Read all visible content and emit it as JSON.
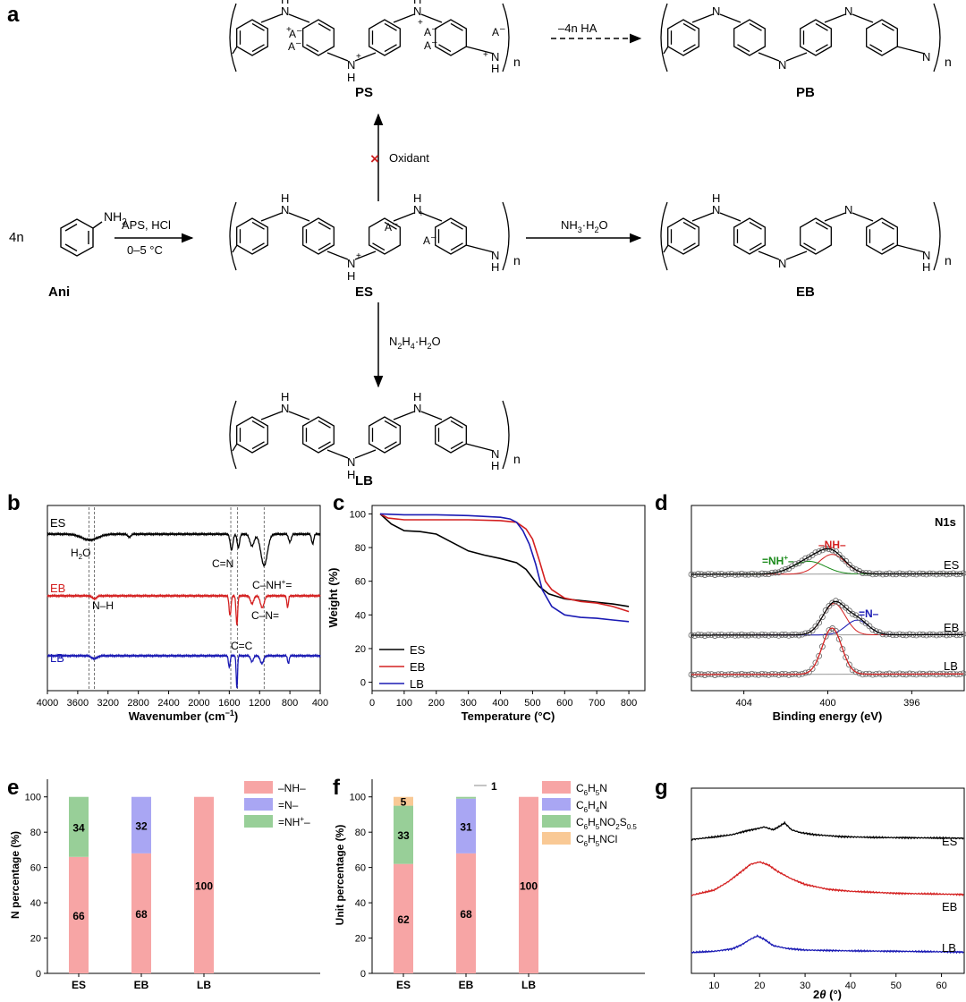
{
  "panels": {
    "a": "a",
    "b": "b",
    "c": "c",
    "d": "d",
    "e": "e",
    "f": "f",
    "g": "g"
  },
  "scheme": {
    "compounds": {
      "ani": "Ani",
      "es": "ES",
      "eb": "EB",
      "lb": "LB",
      "ps": "PS",
      "pb": "PB"
    },
    "coefficient": "4n",
    "subscript_n": "n",
    "ani_group": "NH",
    "ani_group_sub": "2",
    "reagents": {
      "aps": "APS, HCl",
      "temperature": "0–5 °C",
      "nh3": "NH",
      "nh3_sub": "3",
      "nh3_tail": "·H",
      "nh3_sub2": "2",
      "nh3_tail2": "O",
      "n2h4_1": "N",
      "n2h4_sub1": "2",
      "n2h4_2": "H",
      "n2h4_sub2": "4",
      "n2h4_3": "·H",
      "n2h4_sub3": "2",
      "n2h4_4": "O",
      "oxidant": "Oxidant",
      "blocked_mark": "×",
      "ha_loss": "–4n HA"
    },
    "atoms": {
      "n": "N",
      "h": "H",
      "nh": "NH",
      "anion": "A",
      "minus": "–",
      "plus": "+"
    }
  },
  "chart_data": [
    {
      "panel": "b",
      "type": "line",
      "xlabel": "Wavenumber (cm",
      "xlabel_sup": "−1",
      "xlabel_tail": ")",
      "xlim": [
        4000,
        400
      ],
      "xticks": [
        4000,
        3600,
        3200,
        2800,
        2400,
        2000,
        1600,
        1200,
        800,
        400
      ],
      "reference_lines": [
        3450,
        3380,
        1580,
        1490,
        1140
      ],
      "series": [
        {
          "name": "ES",
          "color": "#000000",
          "baseline": 0,
          "peaks": [
            [
              3440,
              3,
              150
            ],
            [
              2920,
              1.5,
              30
            ],
            [
              1570,
              8,
              25
            ],
            [
              1480,
              7,
              22
            ],
            [
              1300,
              6,
              40
            ],
            [
              1140,
              16,
              60
            ],
            [
              800,
              4,
              25
            ],
            [
              500,
              5,
              20
            ]
          ]
        },
        {
          "name": "EB",
          "color": "#d42020",
          "baseline": 0,
          "peaks": [
            [
              3380,
              1.5,
              40
            ],
            [
              1590,
              10,
              18
            ],
            [
              1500,
              15,
              15
            ],
            [
              1300,
              4,
              30
            ],
            [
              1165,
              6,
              35
            ],
            [
              830,
              6,
              15
            ]
          ]
        },
        {
          "name": "LB",
          "color": "#1a1ab4",
          "baseline": 0,
          "peaks": [
            [
              3380,
              1.5,
              50
            ],
            [
              1600,
              6,
              15
            ],
            [
              1500,
              17,
              12
            ],
            [
              1300,
              3,
              25
            ],
            [
              1170,
              4,
              30
            ],
            [
              820,
              4,
              15
            ]
          ]
        }
      ],
      "annotations": [
        "H",
        "2",
        "O",
        "N–H",
        "C=N",
        "C=C",
        "C–NH",
        "+",
        "=",
        "C–N="
      ]
    },
    {
      "panel": "c",
      "type": "line",
      "xlabel": "Temperature (°C)",
      "ylabel": "Weight (%)",
      "xlim": [
        0,
        850
      ],
      "ylim": [
        -5,
        105
      ],
      "xticks": [
        0,
        100,
        200,
        300,
        400,
        500,
        600,
        700,
        800
      ],
      "yticks": [
        0,
        20,
        40,
        60,
        80,
        100
      ],
      "legend_position": "bottom-left",
      "series": [
        {
          "name": "ES",
          "color": "#000000",
          "x": [
            25,
            60,
            100,
            150,
            200,
            250,
            300,
            350,
            400,
            450,
            480,
            500,
            520,
            550,
            600,
            650,
            700,
            750,
            800
          ],
          "y": [
            100,
            94,
            90,
            89.5,
            88,
            83,
            78,
            75.5,
            73.5,
            71,
            67,
            62,
            57,
            52.5,
            49.5,
            48.5,
            47.5,
            46.5,
            45
          ]
        },
        {
          "name": "EB",
          "color": "#d42020",
          "x": [
            25,
            50,
            100,
            200,
            300,
            400,
            450,
            480,
            500,
            520,
            540,
            560,
            600,
            650,
            700,
            750,
            800
          ],
          "y": [
            100,
            97.5,
            96.5,
            96.5,
            96.5,
            96,
            95,
            91,
            85,
            73,
            60,
            55,
            50,
            48,
            47,
            45,
            42
          ]
        },
        {
          "name": "LB",
          "color": "#1a1ab4",
          "x": [
            25,
            100,
            200,
            300,
            400,
            430,
            450,
            470,
            490,
            510,
            530,
            560,
            600,
            650,
            700,
            750,
            800
          ],
          "y": [
            100,
            99.5,
            99.5,
            99,
            98,
            97,
            95,
            90,
            82,
            70,
            55,
            45,
            40,
            38.5,
            38,
            37,
            36
          ]
        }
      ]
    },
    {
      "panel": "d",
      "type": "line",
      "title": "N1s",
      "xlabel": "Binding energy (eV)",
      "xlim": [
        406.5,
        393.5
      ],
      "xticks": [
        404,
        400,
        396
      ],
      "series": [
        {
          "name": "ES",
          "offset": 3,
          "components": [
            {
              "label": "–NH–",
              "color": "#d42020",
              "center": 399.8,
              "height": 1.0,
              "width": 0.9
            },
            {
              "label": "=NH+–",
              "color": "#1a8a1a",
              "center": 400.9,
              "height": 0.65,
              "width": 1.1
            }
          ]
        },
        {
          "name": "EB",
          "offset": 2,
          "components": [
            {
              "label": "–NH–",
              "color": "#d42020",
              "center": 399.7,
              "height": 1.6,
              "width": 0.75
            },
            {
              "label": "=N–",
              "color": "#1a1ab4",
              "center": 398.6,
              "height": 0.75,
              "width": 0.75
            }
          ]
        },
        {
          "name": "LB",
          "offset": 1,
          "components": [
            {
              "label": "–NH–",
              "color": "#d42020",
              "center": 399.8,
              "height": 2.35,
              "width": 0.65
            }
          ]
        }
      ],
      "peak_labels": [
        {
          "text": "=NH",
          "sup": "+",
          "tail": "–",
          "color": "#1a8a1a"
        },
        {
          "text": "–NH–",
          "color": "#d42020"
        },
        {
          "text": "=N–",
          "color": "#1a1ab4"
        }
      ]
    },
    {
      "panel": "e",
      "type": "bar",
      "ylabel": "N percentage (%)",
      "ylim": [
        0,
        110
      ],
      "yticks": [
        0,
        20,
        40,
        60,
        80,
        100
      ],
      "categories": [
        "ES",
        "EB",
        "LB"
      ],
      "series": [
        {
          "name": "–NH–",
          "color": "#f7a5a5",
          "values": [
            66,
            68,
            100
          ]
        },
        {
          "name": "=N–",
          "color": "#a9a6f3",
          "values": [
            0,
            32,
            0
          ]
        },
        {
          "name": "=NH+–",
          "color": "#98cf98",
          "values": [
            34,
            0,
            0
          ]
        }
      ],
      "legend": [
        {
          "text": "–NH–",
          "color": "#f7a5a5"
        },
        {
          "text": "=N–",
          "color": "#a9a6f3"
        },
        {
          "text": "=NH",
          "sup": "+",
          "tail": "–",
          "color": "#98cf98"
        }
      ]
    },
    {
      "panel": "f",
      "type": "bar",
      "ylabel": "Unit percentage (%)",
      "ylim": [
        0,
        110
      ],
      "yticks": [
        0,
        20,
        40,
        60,
        80,
        100
      ],
      "categories": [
        "ES",
        "EB",
        "LB"
      ],
      "series": [
        {
          "name": "C6H5N",
          "color": "#f7a5a5",
          "values": [
            62,
            68,
            100
          ]
        },
        {
          "name": "C6H4N",
          "color": "#a9a6f3",
          "values": [
            0,
            31,
            0
          ]
        },
        {
          "name": "C6H5NO2S0.5",
          "color": "#98cf98",
          "values": [
            33,
            1,
            0
          ]
        },
        {
          "name": "C6H5NCl",
          "color": "#f9c995",
          "values": [
            5,
            0,
            0
          ]
        }
      ],
      "callout": "1",
      "legend": [
        {
          "parts": [
            "C",
            "6",
            "H",
            "5",
            "N"
          ],
          "color": "#f7a5a5"
        },
        {
          "parts": [
            "C",
            "6",
            "H",
            "4",
            "N"
          ],
          "color": "#a9a6f3"
        },
        {
          "parts": [
            "C",
            "6",
            "H",
            "5",
            "NO",
            "2",
            "S",
            "0.5",
            ""
          ],
          "color": "#98cf98"
        },
        {
          "parts": [
            "C",
            "6",
            "H",
            "5",
            "NCl"
          ],
          "color": "#f9c995"
        }
      ]
    },
    {
      "panel": "g",
      "type": "line",
      "xlabel": "2",
      "xlabel_theta": "θ",
      "xlabel_tail": " (°)",
      "xlim": [
        5,
        65
      ],
      "xticks": [
        10,
        20,
        30,
        40,
        50,
        60
      ],
      "series": [
        {
          "name": "ES",
          "color": "#000000",
          "x": [
            5,
            10,
            14,
            17,
            20,
            21,
            23,
            24,
            25.5,
            27,
            29,
            32,
            38,
            45,
            55,
            65
          ],
          "y": [
            0.3,
            0.6,
            0.9,
            1.35,
            1.7,
            1.85,
            1.5,
            1.8,
            2.35,
            1.5,
            1.15,
            0.9,
            0.65,
            0.55,
            0.5,
            0.45
          ]
        },
        {
          "name": "EB",
          "color": "#d42020",
          "x": [
            5,
            10,
            13,
            16,
            18,
            20,
            22,
            24,
            27,
            30,
            35,
            40,
            50,
            60,
            65
          ],
          "y": [
            0.25,
            0.9,
            1.9,
            3.2,
            4.1,
            4.4,
            4.0,
            3.2,
            2.3,
            1.6,
            1.0,
            0.75,
            0.5,
            0.4,
            0.35
          ]
        },
        {
          "name": "LB",
          "color": "#1a1ab4",
          "x": [
            5,
            10,
            14,
            16,
            18,
            19.5,
            21,
            23,
            26,
            30,
            40,
            50,
            65
          ],
          "y": [
            0.15,
            0.3,
            0.6,
            1.1,
            1.8,
            2.2,
            1.8,
            1.0,
            0.65,
            0.45,
            0.35,
            0.3,
            0.2
          ]
        }
      ]
    }
  ]
}
